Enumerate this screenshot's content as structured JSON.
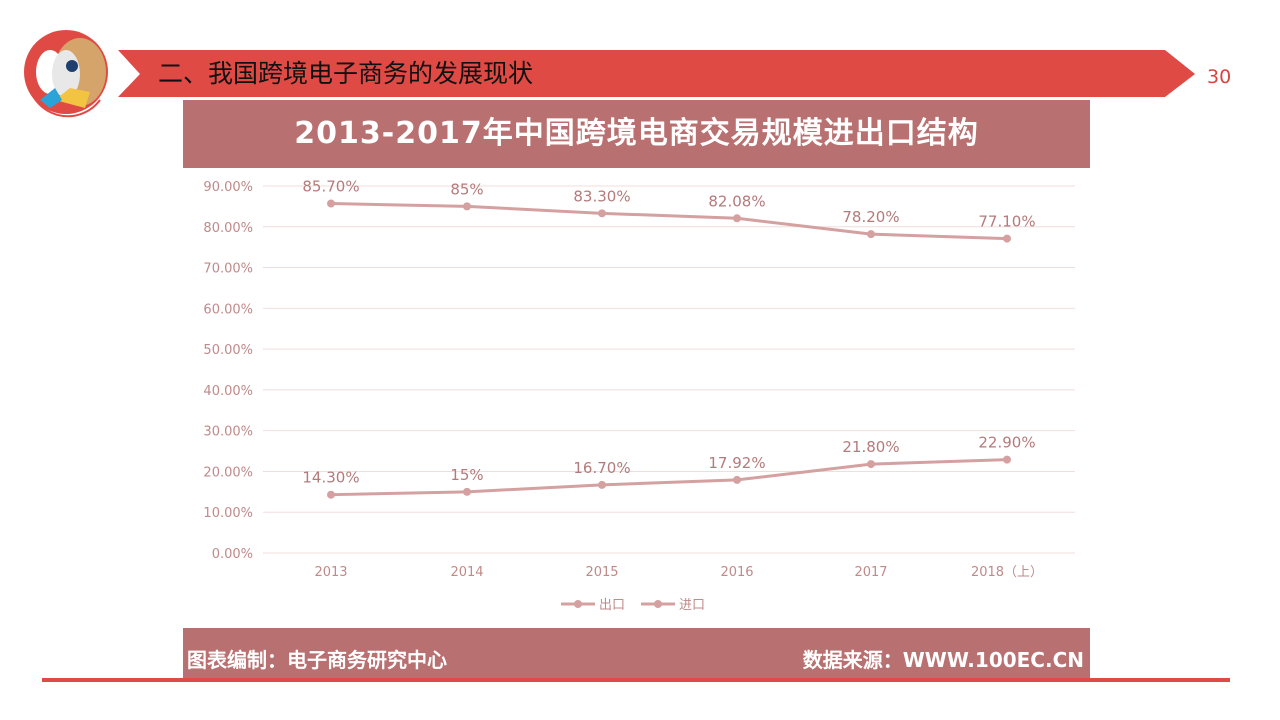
{
  "header": {
    "title": "二、我国跨境电子商务的发展现状",
    "page_number": "30",
    "accent": "#e04a45"
  },
  "chart_panel": {
    "title": "2013-2017年中国跨境电商交易规模进出口结构",
    "footer_left": "图表编制：电子商务研究中心",
    "footer_right": "数据来源：WWW.100EC.CN",
    "band_color": "#b87070"
  },
  "chart_data": {
    "type": "line",
    "title": "2013-2017年中国跨境电商交易规模进出口结构",
    "categories": [
      "2013",
      "2014",
      "2015",
      "2016",
      "2017",
      "2018（上）"
    ],
    "series": [
      {
        "name": "出口",
        "values": [
          85.7,
          85,
          83.3,
          82.08,
          78.2,
          77.1
        ],
        "labels": [
          "85.70%",
          "85%",
          "83.30%",
          "82.08%",
          "78.20%",
          "77.10%"
        ]
      },
      {
        "name": "进口",
        "values": [
          14.3,
          15,
          16.7,
          17.92,
          21.8,
          22.9
        ],
        "labels": [
          "14.30%",
          "15%",
          "16.70%",
          "17.92%",
          "21.80%",
          "22.90%"
        ]
      }
    ],
    "yticks": [
      "0.00%",
      "10.00%",
      "20.00%",
      "30.00%",
      "40.00%",
      "50.00%",
      "60.00%",
      "70.00%",
      "80.00%",
      "90.00%"
    ],
    "ylim": [
      0,
      90
    ],
    "grid": true,
    "legend": "bottom",
    "color": "#d4a0a0"
  }
}
